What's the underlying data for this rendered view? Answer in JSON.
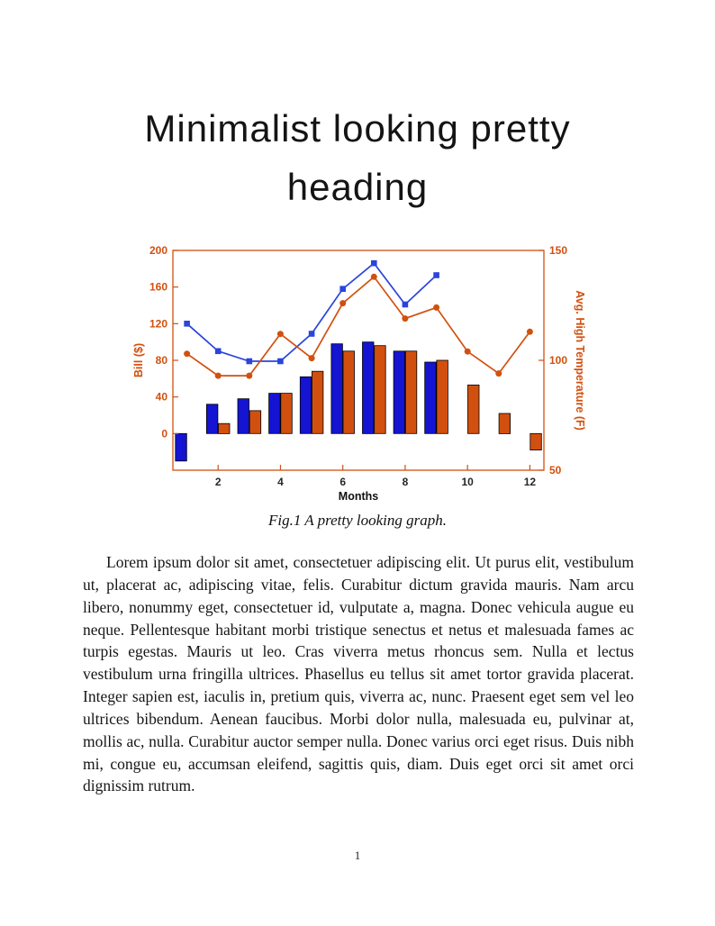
{
  "page": {
    "heading": "Minimalist looking pretty heading",
    "caption": "Fig.1 A pretty looking graph.",
    "body": "Lorem ipsum dolor sit amet, consectetuer adipiscing elit. Ut purus elit, vestibulum ut, placerat ac, adipiscing vitae, felis. Curabitur dictum gravida mauris. Nam arcu libero, nonummy eget, consectetuer id, vulputate a, magna. Donec vehicula augue eu neque. Pellentesque habitant morbi tristique senectus et netus et malesuada fames ac turpis egestas. Mauris ut leo. Cras viverra metus rhoncus sem. Nulla et lectus vestibulum urna fringilla ultrices. Phasellus eu tellus sit amet tortor gravida placerat. Integer sapien est, iaculis in, pretium quis, viverra ac, nunc. Praesent eget sem vel leo ultrices bibendum. Aenean faucibus. Morbi dolor nulla, malesuada eu, pulvinar at, mollis ac, nulla. Curabitur auctor semper nulla. Donec varius orci eget risus. Duis nibh mi, congue eu, accumsan eleifend, sagittis quis, diam. Duis eget orci sit amet orci dignissim rutrum.",
    "page_number": "1"
  },
  "chart_data": {
    "type": "combo-bar-line",
    "title": "",
    "x": [
      1,
      2,
      3,
      4,
      5,
      6,
      7,
      8,
      9,
      10,
      11,
      12
    ],
    "xlim": [
      0.55,
      12.45
    ],
    "x_ticks": [
      2,
      4,
      6,
      8,
      10,
      12
    ],
    "xlabel": "Months",
    "grid": false,
    "legend": "none",
    "bar_width": 0.36,
    "bar_offset": 0.19,
    "x_tick_color": "#262626",
    "xlabel_color": "#111111",
    "left_axis": {
      "label": "Bill ($)",
      "min": -40,
      "max": 200,
      "ticks": [
        0,
        40,
        80,
        120,
        160,
        200
      ],
      "color": "#d2500f"
    },
    "right_axis": {
      "label": "Avg. High Temperature (F)",
      "min": 50,
      "max": 150,
      "ticks": [
        50,
        100,
        150
      ],
      "color": "#d2500f"
    },
    "series": [
      {
        "name": "bill-bars-blue",
        "type": "bar",
        "axis": "left",
        "color": "#1414d2",
        "edge": "#000000",
        "values": [
          -30,
          32,
          38,
          44,
          62,
          98,
          100,
          90,
          78,
          null,
          null,
          null
        ]
      },
      {
        "name": "bill-bars-orange",
        "type": "bar",
        "axis": "left",
        "color": "#d2500f",
        "edge": "#000000",
        "values": [
          null,
          11,
          25,
          44,
          68,
          90,
          96,
          90,
          80,
          53,
          22,
          -18
        ]
      },
      {
        "name": "bill-line-blue",
        "type": "line",
        "axis": "left",
        "color": "#2a44dd",
        "marker": "square",
        "values": [
          120,
          90,
          79,
          79,
          109,
          158,
          186,
          141,
          173,
          null,
          null,
          null
        ]
      },
      {
        "name": "temperature-line-orange",
        "type": "line",
        "axis": "right",
        "color": "#d2500f",
        "marker": "circle",
        "values": [
          103,
          93,
          93,
          112,
          101,
          126,
          138,
          119,
          124,
          104,
          94,
          113
        ]
      }
    ]
  }
}
